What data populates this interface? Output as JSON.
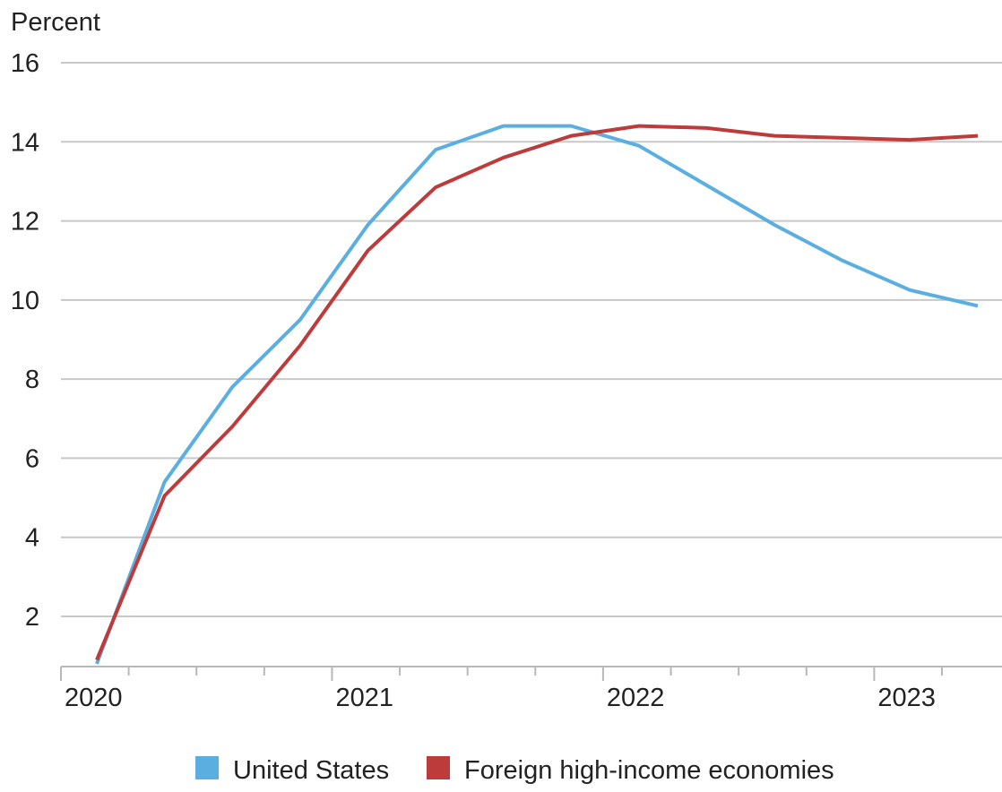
{
  "chart_data": {
    "type": "line",
    "ylabel": "Percent",
    "xlabel": "",
    "ylim": [
      0.8,
      16
    ],
    "y_ticks": [
      2,
      4,
      6,
      8,
      10,
      12,
      14,
      16
    ],
    "x_tick_labels": [
      "2020",
      "2021",
      "2022",
      "2023"
    ],
    "grid": true,
    "legend_position": "bottom",
    "x": [
      "2020-Q1",
      "2020-Q2",
      "2020-Q3",
      "2020-Q4",
      "2021-Q1",
      "2021-Q2",
      "2021-Q3",
      "2021-Q4",
      "2022-Q1",
      "2022-Q2",
      "2022-Q3",
      "2022-Q4",
      "2023-Q1",
      "2023-Q2"
    ],
    "series": [
      {
        "name": "United States",
        "color": "#5aafe0",
        "values": [
          0.8,
          5.4,
          7.8,
          9.5,
          11.9,
          13.8,
          14.4,
          14.4,
          13.9,
          12.9,
          11.9,
          11.0,
          10.25,
          9.85
        ]
      },
      {
        "name": "Foreign high-income economies",
        "color": "#bd3b3b",
        "values": [
          0.9,
          5.05,
          6.8,
          8.85,
          11.25,
          12.85,
          13.6,
          14.15,
          14.4,
          14.35,
          14.15,
          14.1,
          14.05,
          14.15
        ]
      }
    ]
  }
}
